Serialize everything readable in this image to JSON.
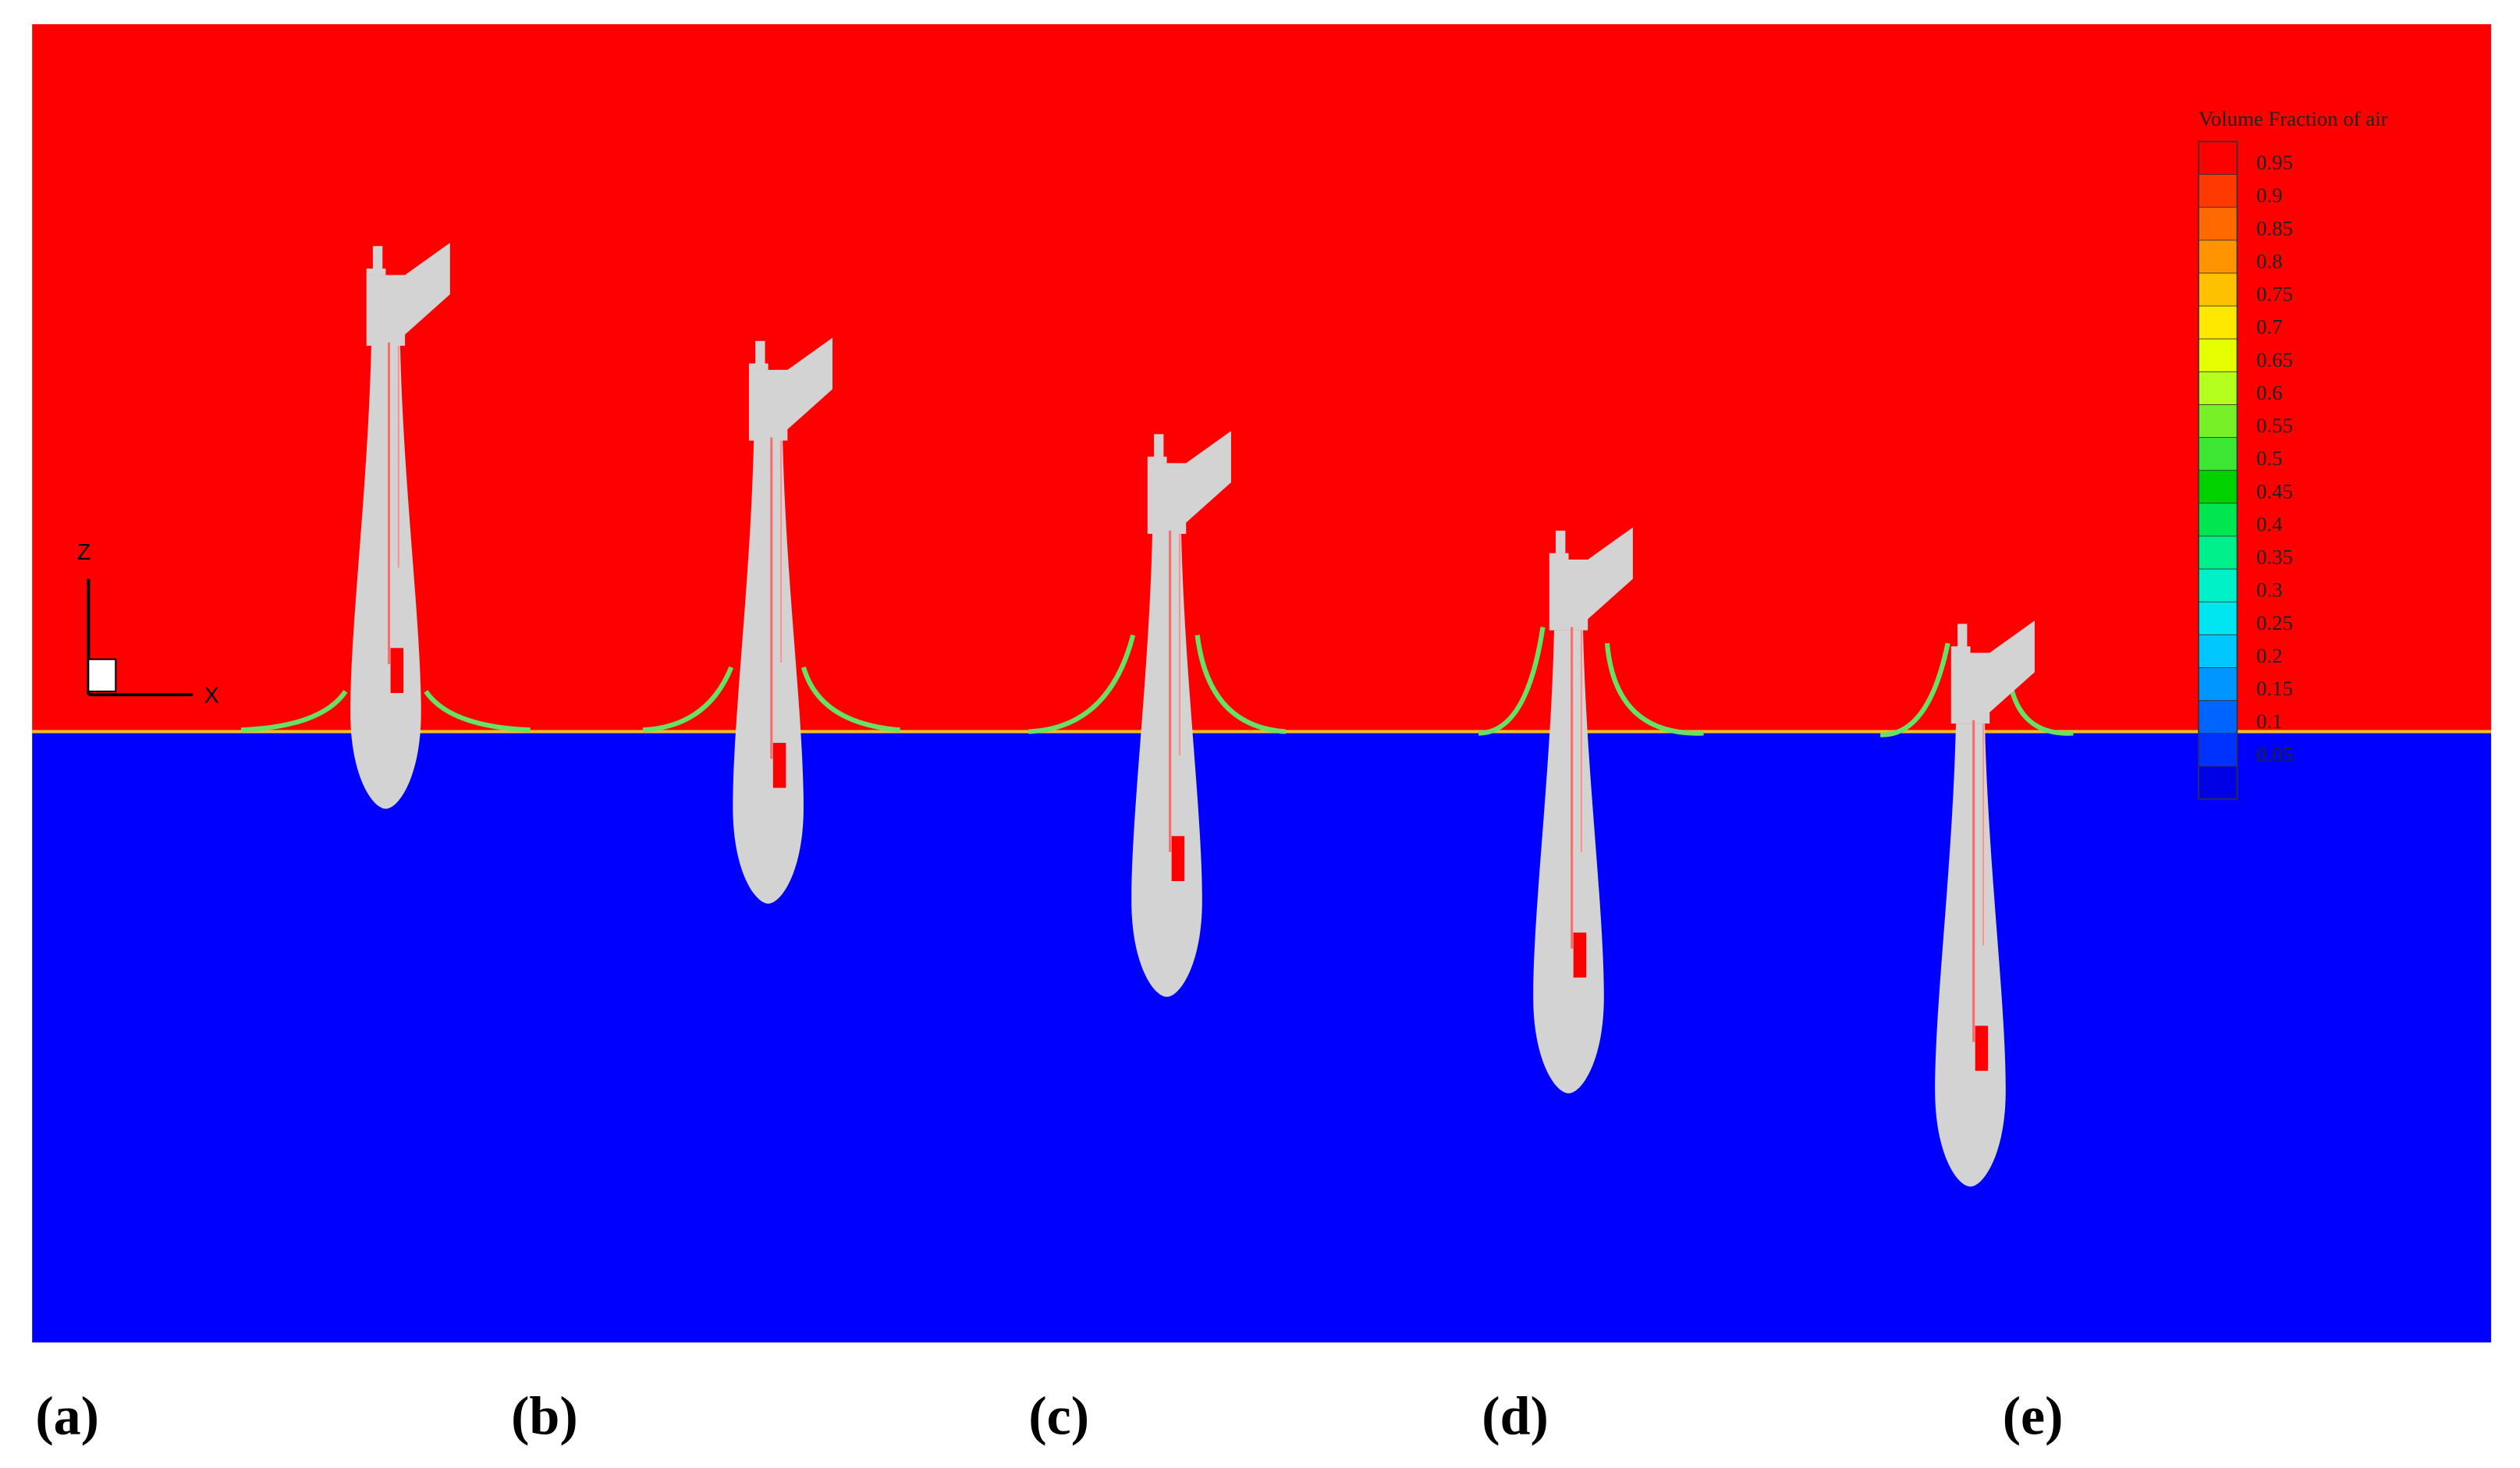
{
  "legend": {
    "title": "Volume Fraction of air",
    "labels": [
      0.95,
      0.9,
      0.85,
      0.8,
      0.75,
      0.7,
      0.65,
      0.6,
      0.55,
      0.5,
      0.45,
      0.4,
      0.35,
      0.3,
      0.25,
      0.2,
      0.15,
      0.1,
      0.05
    ],
    "colors": [
      "#ff0000",
      "#ff3a00",
      "#ff6a00",
      "#ff9400",
      "#ffc000",
      "#ffe800",
      "#e6ff00",
      "#b4ff1e",
      "#78f028",
      "#3ce632",
      "#00d200",
      "#00e650",
      "#00f08c",
      "#00f0c8",
      "#00e6f0",
      "#00c8ff",
      "#0096ff",
      "#0064ff",
      "#0032ff",
      "#0000e6"
    ]
  },
  "axes": {
    "z": "Z",
    "x": "X"
  },
  "panels": [
    "(a)",
    "(b)",
    "(c)",
    "(d)",
    "(e)"
  ]
}
